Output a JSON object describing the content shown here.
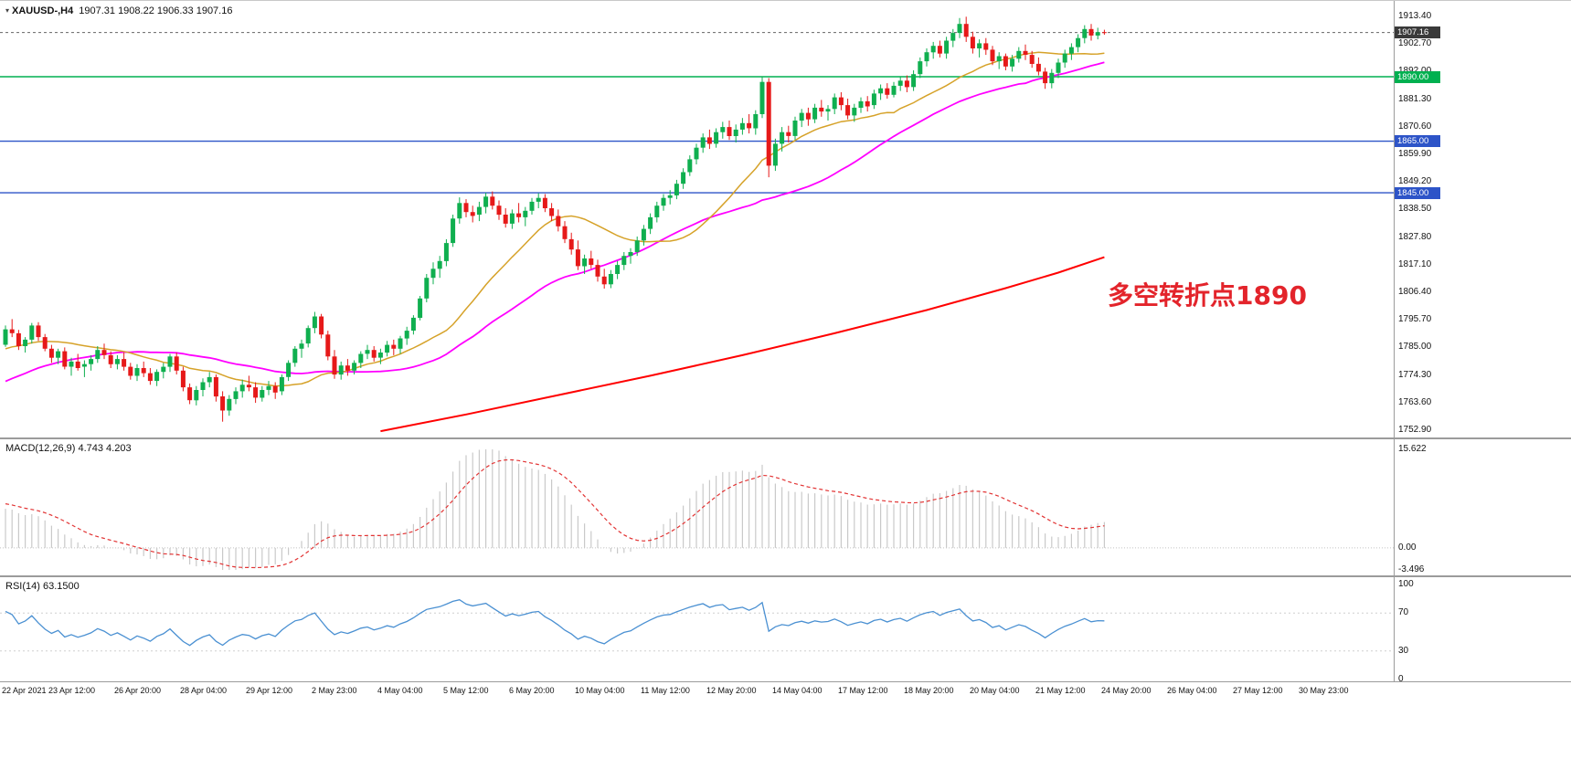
{
  "header": {
    "symbol": "XAUUSD-,H4",
    "ohlc": "1907.31 1908.22 1906.33 1907.16"
  },
  "annotation": {
    "text": "多空转折点1890",
    "color": "#e3242b"
  },
  "macd_panel": {
    "title": "MACD(12,26,9) 4.743 4.203",
    "max": 15.622,
    "min": -3.496,
    "ticks": [
      {
        "label": "15.622",
        "value": 15.622
      },
      {
        "label": "0.00",
        "value": 0
      },
      {
        "label": "-3.496",
        "value": -3.496
      }
    ],
    "histogram_color": "#c9c9c9",
    "signal_color": "#e23333"
  },
  "rsi_panel": {
    "title": "RSI(14) 63.1500",
    "levels": [
      70,
      30
    ],
    "ticks": [
      {
        "label": "100",
        "value": 100
      },
      {
        "label": "70",
        "value": 70
      },
      {
        "label": "30",
        "value": 30
      },
      {
        "label": "0",
        "value": 0
      }
    ],
    "line_color": "#4a90d2"
  },
  "chart_data": {
    "type": "candlestick",
    "symbol": "XAUUSD-",
    "timeframe": "H4",
    "last_ohlc": {
      "open": 1907.31,
      "high": 1908.22,
      "low": 1906.33,
      "close": 1907.16
    },
    "up_color": "#0faf4f",
    "down_color": "#e61919",
    "price_ticks": [
      1913.4,
      1902.7,
      1892.0,
      1881.3,
      1870.6,
      1859.9,
      1849.2,
      1838.5,
      1827.8,
      1817.1,
      1806.4,
      1795.7,
      1785.0,
      1774.3,
      1763.6,
      1752.9
    ],
    "x_labels": [
      "22 Apr 2021",
      "23 Apr 12:00",
      "26 Apr 20:00",
      "28 Apr 04:00",
      "29 Apr 12:00",
      "2 May 23:00",
      "4 May 04:00",
      "5 May 12:00",
      "6 May 20:00",
      "10 May 04:00",
      "11 May 12:00",
      "12 May 20:00",
      "14 May 04:00",
      "17 May 12:00",
      "18 May 20:00",
      "20 May 04:00",
      "21 May 12:00",
      "24 May 20:00",
      "26 May 04:00",
      "27 May 12:00",
      "30 May 23:00"
    ],
    "hlines": [
      {
        "price": 1890.0,
        "label": "1890.00",
        "color": "#00b050"
      },
      {
        "price": 1865.0,
        "label": "1865.00",
        "color": "#2d54c8"
      },
      {
        "price": 1845.0,
        "label": "1845.00",
        "color": "#2d54c8"
      }
    ],
    "price_line": {
      "value": 1907.16,
      "label": "1907.16",
      "color": "#3a3a3a"
    },
    "overlays": {
      "fast": {
        "period": 20,
        "color": "#d6a229",
        "width": 1.5
      },
      "medium": {
        "period": 40,
        "color": "#ff00ff",
        "width": 1.8
      },
      "slow": {
        "color": "#ff0000",
        "width": 2,
        "points": [
          [
            57,
            1752.5
          ],
          [
            70,
            1759
          ],
          [
            84,
            1766.5
          ],
          [
            98,
            1774
          ],
          [
            112,
            1782
          ],
          [
            126,
            1790.5
          ],
          [
            140,
            1799.5
          ],
          [
            152,
            1808
          ],
          [
            160,
            1814
          ],
          [
            167,
            1820
          ]
        ]
      }
    },
    "indicators": {
      "macd": {
        "fast": 12,
        "slow": 26,
        "signal": 9
      },
      "rsi": {
        "period": 14
      }
    },
    "prehistory_closes": [
      1744.0,
      1746.5,
      1745.0,
      1748.0,
      1750.5,
      1749.0,
      1752.0,
      1755.0,
      1753.5,
      1757.0,
      1760.0,
      1758.5,
      1762.0,
      1764.5,
      1763.0,
      1766.0,
      1769.0,
      1767.5,
      1771.0,
      1774.0,
      1772.0,
      1776.0,
      1778.5,
      1776.5,
      1780.0,
      1782.0,
      1780.0,
      1783.0,
      1785.0,
      1783.0,
      1786.0,
      1788.0,
      1786.5,
      1789.0,
      1791.0,
      1789.0,
      1787.0,
      1785.0,
      1786.0,
      1786.0
    ],
    "candles": [
      [
        1786.0,
        1793.5,
        1785.2,
        1792.0
      ],
      [
        1792.0,
        1796.0,
        1789.0,
        1790.5
      ],
      [
        1790.5,
        1791.8,
        1784.0,
        1785.5
      ],
      [
        1785.5,
        1789.0,
        1783.0,
        1788.0
      ],
      [
        1788.0,
        1794.5,
        1786.5,
        1793.5
      ],
      [
        1793.5,
        1794.8,
        1787.5,
        1789.0
      ],
      [
        1789.0,
        1790.2,
        1783.5,
        1784.5
      ],
      [
        1784.5,
        1786.0,
        1779.0,
        1781.0
      ],
      [
        1781.0,
        1784.5,
        1778.5,
        1783.5
      ],
      [
        1783.5,
        1785.0,
        1776.5,
        1777.5
      ],
      [
        1777.5,
        1781.0,
        1774.0,
        1779.5
      ],
      [
        1779.5,
        1782.5,
        1776.0,
        1777.0
      ],
      [
        1777.5,
        1780.0,
        1773.5,
        1778.5
      ],
      [
        1778.5,
        1782.0,
        1776.0,
        1780.5
      ],
      [
        1780.5,
        1785.5,
        1779.0,
        1784.0
      ],
      [
        1784.0,
        1786.5,
        1780.5,
        1782.0
      ],
      [
        1782.0,
        1783.5,
        1777.0,
        1778.5
      ],
      [
        1778.5,
        1782.0,
        1776.5,
        1780.5
      ],
      [
        1780.5,
        1783.0,
        1776.0,
        1777.5
      ],
      [
        1777.5,
        1779.0,
        1772.5,
        1774.0
      ],
      [
        1774.0,
        1778.5,
        1772.0,
        1777.0
      ],
      [
        1777.0,
        1779.5,
        1773.5,
        1775.0
      ],
      [
        1775.0,
        1777.0,
        1770.5,
        1772.0
      ],
      [
        1772.0,
        1776.5,
        1770.0,
        1775.5
      ],
      [
        1775.5,
        1779.0,
        1773.0,
        1777.5
      ],
      [
        1777.5,
        1782.5,
        1775.5,
        1781.5
      ],
      [
        1781.5,
        1783.0,
        1774.5,
        1776.0
      ],
      [
        1776.0,
        1777.5,
        1768.0,
        1769.5
      ],
      [
        1769.5,
        1771.0,
        1763.0,
        1764.5
      ],
      [
        1764.5,
        1770.0,
        1762.5,
        1768.5
      ],
      [
        1768.5,
        1773.0,
        1766.0,
        1771.5
      ],
      [
        1771.5,
        1775.5,
        1769.5,
        1773.5
      ],
      [
        1773.5,
        1774.5,
        1764.0,
        1766.0
      ],
      [
        1766.0,
        1768.0,
        1756.2,
        1760.5
      ],
      [
        1760.5,
        1766.5,
        1758.5,
        1765.0
      ],
      [
        1765.0,
        1769.5,
        1763.0,
        1768.0
      ],
      [
        1768.0,
        1772.5,
        1765.5,
        1770.5
      ],
      [
        1770.5,
        1774.0,
        1768.0,
        1769.5
      ],
      [
        1769.5,
        1771.5,
        1763.5,
        1765.5
      ],
      [
        1765.5,
        1770.0,
        1764.0,
        1768.5
      ],
      [
        1768.5,
        1772.0,
        1766.5,
        1770.0
      ],
      [
        1770.0,
        1771.5,
        1765.0,
        1767.5
      ],
      [
        1768.0,
        1774.5,
        1766.5,
        1773.5
      ],
      [
        1773.5,
        1780.0,
        1772.0,
        1779.0
      ],
      [
        1779.0,
        1785.5,
        1777.5,
        1784.5
      ],
      [
        1784.5,
        1788.0,
        1781.0,
        1786.5
      ],
      [
        1786.5,
        1793.5,
        1785.0,
        1792.5
      ],
      [
        1792.5,
        1798.8,
        1790.5,
        1797.0
      ],
      [
        1797.0,
        1798.0,
        1788.5,
        1790.0
      ],
      [
        1790.0,
        1791.5,
        1780.0,
        1781.5
      ],
      [
        1781.5,
        1784.0,
        1772.8,
        1774.5
      ],
      [
        1774.5,
        1779.5,
        1772.5,
        1778.0
      ],
      [
        1778.0,
        1780.5,
        1774.0,
        1776.0
      ],
      [
        1776.0,
        1780.0,
        1774.5,
        1779.0
      ],
      [
        1779.0,
        1783.5,
        1777.0,
        1782.5
      ],
      [
        1782.5,
        1786.0,
        1780.5,
        1784.0
      ],
      [
        1784.0,
        1785.5,
        1779.5,
        1781.0
      ],
      [
        1781.0,
        1784.5,
        1778.5,
        1783.0
      ],
      [
        1783.0,
        1787.5,
        1781.5,
        1786.0
      ],
      [
        1786.0,
        1788.0,
        1782.0,
        1784.5
      ],
      [
        1784.5,
        1789.5,
        1782.5,
        1788.5
      ],
      [
        1788.5,
        1793.0,
        1786.0,
        1791.5
      ],
      [
        1791.5,
        1797.5,
        1790.0,
        1796.5
      ],
      [
        1796.5,
        1805.0,
        1795.5,
        1804.0
      ],
      [
        1804.0,
        1813.5,
        1802.5,
        1812.0
      ],
      [
        1812.0,
        1818.0,
        1809.5,
        1815.5
      ],
      [
        1815.5,
        1820.5,
        1812.0,
        1818.5
      ],
      [
        1818.5,
        1827.0,
        1816.5,
        1825.5
      ],
      [
        1825.5,
        1836.5,
        1824.0,
        1835.0
      ],
      [
        1835.0,
        1843.2,
        1833.0,
        1841.0
      ],
      [
        1841.0,
        1842.5,
        1835.5,
        1837.5
      ],
      [
        1837.5,
        1840.0,
        1833.5,
        1836.0
      ],
      [
        1836.5,
        1841.5,
        1834.0,
        1839.5
      ],
      [
        1839.5,
        1845.0,
        1837.0,
        1843.5
      ],
      [
        1843.5,
        1845.5,
        1838.5,
        1840.0
      ],
      [
        1840.0,
        1842.0,
        1834.5,
        1836.5
      ],
      [
        1836.5,
        1839.0,
        1831.5,
        1833.0
      ],
      [
        1833.0,
        1838.5,
        1831.0,
        1837.0
      ],
      [
        1837.0,
        1841.0,
        1833.5,
        1835.5
      ],
      [
        1835.5,
        1839.5,
        1832.0,
        1838.0
      ],
      [
        1838.0,
        1843.0,
        1836.5,
        1841.5
      ],
      [
        1841.5,
        1844.8,
        1839.0,
        1843.0
      ],
      [
        1843.0,
        1844.5,
        1837.5,
        1839.0
      ],
      [
        1839.0,
        1841.0,
        1834.0,
        1836.0
      ],
      [
        1836.0,
        1838.5,
        1830.0,
        1832.0
      ],
      [
        1832.0,
        1834.0,
        1825.5,
        1827.0
      ],
      [
        1827.0,
        1829.5,
        1821.0,
        1823.0
      ],
      [
        1823.0,
        1826.5,
        1815.0,
        1816.5
      ],
      [
        1816.5,
        1821.0,
        1813.5,
        1819.5
      ],
      [
        1819.5,
        1822.5,
        1815.5,
        1817.0
      ],
      [
        1817.0,
        1819.0,
        1810.5,
        1812.5
      ],
      [
        1812.5,
        1815.5,
        1807.8,
        1809.5
      ],
      [
        1809.5,
        1815.0,
        1808.0,
        1813.5
      ],
      [
        1813.5,
        1818.5,
        1811.5,
        1817.0
      ],
      [
        1817.0,
        1822.0,
        1815.0,
        1820.5
      ],
      [
        1820.5,
        1823.5,
        1817.5,
        1822.0
      ],
      [
        1822.0,
        1828.0,
        1820.5,
        1826.5
      ],
      [
        1826.5,
        1832.5,
        1824.5,
        1831.0
      ],
      [
        1831.0,
        1837.0,
        1829.0,
        1835.5
      ],
      [
        1835.5,
        1841.5,
        1833.5,
        1840.0
      ],
      [
        1840.0,
        1844.5,
        1838.0,
        1843.0
      ],
      [
        1843.0,
        1846.0,
        1840.5,
        1844.0
      ],
      [
        1844.0,
        1850.0,
        1842.5,
        1848.5
      ],
      [
        1848.5,
        1854.5,
        1846.5,
        1853.0
      ],
      [
        1853.0,
        1859.5,
        1851.5,
        1858.0
      ],
      [
        1858.0,
        1864.0,
        1856.0,
        1862.5
      ],
      [
        1862.5,
        1868.0,
        1860.5,
        1866.5
      ],
      [
        1866.5,
        1869.5,
        1862.0,
        1864.0
      ],
      [
        1864.0,
        1870.0,
        1862.5,
        1868.5
      ],
      [
        1868.5,
        1872.5,
        1866.0,
        1870.5
      ],
      [
        1870.5,
        1873.0,
        1865.5,
        1867.0
      ],
      [
        1867.0,
        1871.5,
        1864.5,
        1869.5
      ],
      [
        1869.5,
        1874.0,
        1867.5,
        1872.0
      ],
      [
        1872.0,
        1875.5,
        1868.0,
        1870.0
      ],
      [
        1870.0,
        1877.0,
        1867.5,
        1875.5
      ],
      [
        1875.5,
        1890.2,
        1874.0,
        1888.0
      ],
      [
        1888.0,
        1889.5,
        1851.0,
        1855.5
      ],
      [
        1855.5,
        1866.0,
        1853.5,
        1864.0
      ],
      [
        1864.0,
        1870.5,
        1861.0,
        1868.5
      ],
      [
        1868.5,
        1871.0,
        1864.5,
        1867.0
      ],
      [
        1867.0,
        1874.5,
        1865.5,
        1873.0
      ],
      [
        1873.0,
        1877.5,
        1870.5,
        1876.0
      ],
      [
        1876.0,
        1878.0,
        1871.0,
        1873.5
      ],
      [
        1873.5,
        1879.5,
        1872.0,
        1878.0
      ],
      [
        1878.0,
        1881.0,
        1874.5,
        1876.5
      ],
      [
        1876.5,
        1879.0,
        1873.0,
        1877.5
      ],
      [
        1877.5,
        1883.5,
        1875.5,
        1882.0
      ],
      [
        1882.0,
        1884.0,
        1877.0,
        1879.0
      ],
      [
        1879.0,
        1881.5,
        1873.5,
        1875.0
      ],
      [
        1875.0,
        1879.5,
        1872.5,
        1878.0
      ],
      [
        1878.0,
        1882.0,
        1876.0,
        1880.5
      ],
      [
        1880.5,
        1882.5,
        1876.5,
        1878.5
      ],
      [
        1879.0,
        1885.0,
        1877.5,
        1883.5
      ],
      [
        1883.5,
        1887.0,
        1881.0,
        1885.5
      ],
      [
        1885.5,
        1887.5,
        1881.5,
        1883.0
      ],
      [
        1883.0,
        1888.0,
        1882.0,
        1886.5
      ],
      [
        1886.5,
        1890.0,
        1884.5,
        1888.5
      ],
      [
        1888.5,
        1890.5,
        1884.0,
        1886.0
      ],
      [
        1886.0,
        1892.5,
        1884.5,
        1891.0
      ],
      [
        1891.0,
        1897.5,
        1889.5,
        1896.0
      ],
      [
        1896.0,
        1901.0,
        1894.0,
        1899.5
      ],
      [
        1899.5,
        1903.5,
        1897.0,
        1902.0
      ],
      [
        1902.0,
        1904.0,
        1897.5,
        1899.0
      ],
      [
        1899.0,
        1905.5,
        1897.0,
        1904.0
      ],
      [
        1904.0,
        1908.5,
        1901.5,
        1907.0
      ],
      [
        1907.0,
        1912.8,
        1905.0,
        1910.5
      ],
      [
        1910.5,
        1913.3,
        1903.5,
        1905.5
      ],
      [
        1905.5,
        1907.5,
        1899.0,
        1901.0
      ],
      [
        1901.0,
        1904.5,
        1897.5,
        1903.0
      ],
      [
        1903.0,
        1905.0,
        1898.5,
        1900.5
      ],
      [
        1900.5,
        1902.0,
        1894.5,
        1896.0
      ],
      [
        1896.0,
        1899.5,
        1893.0,
        1898.0
      ],
      [
        1898.0,
        1899.0,
        1892.5,
        1894.0
      ],
      [
        1894.0,
        1898.5,
        1892.0,
        1897.0
      ],
      [
        1897.0,
        1901.5,
        1895.5,
        1900.0
      ],
      [
        1900.0,
        1902.5,
        1896.5,
        1898.5
      ],
      [
        1898.5,
        1900.0,
        1893.5,
        1895.0
      ],
      [
        1895.0,
        1897.5,
        1890.5,
        1892.0
      ],
      [
        1892.0,
        1893.5,
        1885.3,
        1887.5
      ],
      [
        1887.5,
        1893.0,
        1885.5,
        1891.5
      ],
      [
        1891.5,
        1897.0,
        1889.5,
        1895.5
      ],
      [
        1895.5,
        1900.5,
        1893.5,
        1899.0
      ],
      [
        1899.0,
        1903.0,
        1896.5,
        1901.5
      ],
      [
        1901.5,
        1906.5,
        1899.5,
        1905.0
      ],
      [
        1905.0,
        1910.0,
        1903.0,
        1908.5
      ],
      [
        1908.5,
        1910.5,
        1904.0,
        1906.0
      ],
      [
        1906.0,
        1909.0,
        1904.5,
        1907.3
      ],
      [
        1907.31,
        1908.22,
        1906.33,
        1907.16
      ]
    ]
  }
}
